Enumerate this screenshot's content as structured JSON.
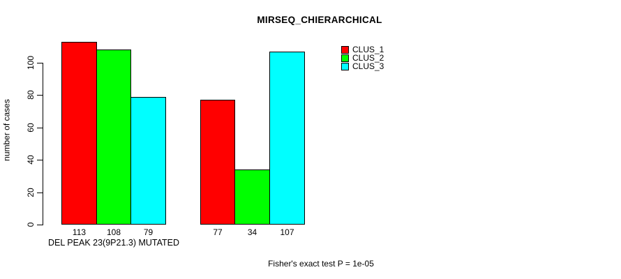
{
  "title": "MIRSEQ_CHIERARCHICAL",
  "chart_data": {
    "type": "bar",
    "title": "MIRSEQ_CHIERARCHICAL",
    "ylabel": "number of cases",
    "xlabel": "DEL PEAK 23(9P21.3) MUTATED",
    "categories": [
      "DEL PEAK 23(9P21.3) MUTATED",
      ""
    ],
    "series": [
      {
        "name": "CLUS_1",
        "color": "#ff0000",
        "values": [
          113,
          77
        ]
      },
      {
        "name": "CLUS_2",
        "color": "#00ff00",
        "values": [
          108,
          34
        ]
      },
      {
        "name": "CLUS_3",
        "color": "#00ffff",
        "values": [
          79,
          107
        ]
      }
    ],
    "bar_value_labels": [
      [
        "113",
        "108",
        "79"
      ],
      [
        "77",
        "34",
        "107"
      ]
    ],
    "y_ticks": [
      0,
      20,
      40,
      60,
      80,
      100
    ],
    "ylim": [
      0,
      116
    ],
    "grid": false,
    "legend_position": "top-right",
    "legend_entries": [
      "CLUS_1",
      "CLUS_2",
      "CLUS_3"
    ],
    "annotation": "Fisher's exact test P = 1e-05"
  },
  "colors": {
    "clus_1": "#ff0000",
    "clus_2": "#00ff00",
    "clus_3": "#00ffff",
    "axis": "#000000",
    "background": "#ffffff"
  }
}
